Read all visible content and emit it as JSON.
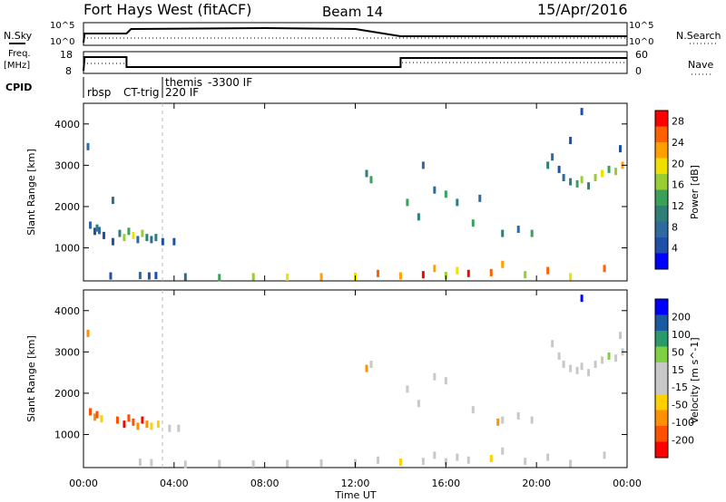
{
  "header": {
    "station": "Fort Hays West (fitACF)",
    "beam": "Beam 14",
    "date": "15/Apr/2016"
  },
  "summary": {
    "nsky_label": "N.Sky",
    "nsky_ticks": [
      "10^5",
      "10^0"
    ],
    "nsearch_label": "N.Search",
    "freq_label_1": "Freq.",
    "freq_label_2": "[MHz]",
    "freq_ticks": [
      "18",
      "8"
    ],
    "nave_ticks": [
      "60",
      "0"
    ],
    "nave_label": "Nave",
    "cpid_label": "CPID",
    "cpid_entries": [
      "rbsp",
      "CT-trig",
      "themis",
      "-3300 IF",
      "220 IF"
    ]
  },
  "colors": {
    "power_scale": [
      "#0000ff",
      "#1f4fa8",
      "#2e6aa0",
      "#2f7f78",
      "#3aa05a",
      "#9acd32",
      "#f0e000",
      "#ffa000",
      "#ff6000",
      "#ff0000"
    ],
    "velocity_scale": [
      "#ff0000",
      "#ff5000",
      "#ff9000",
      "#ffd000",
      "#c8c8c8",
      "#c8c8c8",
      "#7fd040",
      "#2a9a6a",
      "#1a5aa0",
      "#0000ff"
    ]
  },
  "chart_data": [
    {
      "type": "scatter",
      "panel": "power",
      "title": "",
      "xlabel": "Time UT",
      "ylabel": "Slant Range [km]",
      "xlim": [
        0,
        24
      ],
      "ylim": [
        200,
        4500
      ],
      "x_ticks": [
        "00:00",
        "04:00",
        "08:00",
        "12:00",
        "16:00",
        "20:00",
        "00:00"
      ],
      "y_ticks": [
        "1000",
        "2000",
        "3000",
        "4000"
      ],
      "colorbar_label": "Power [dB]",
      "colorbar_ticks": [
        "4",
        "8",
        "12",
        "16",
        "20",
        "24",
        "28"
      ],
      "colorbar_range": [
        0,
        30
      ],
      "points": [
        [
          0.2,
          3450,
          6
        ],
        [
          0.3,
          1550,
          8
        ],
        [
          0.5,
          1400,
          5
        ],
        [
          0.6,
          1480,
          9
        ],
        [
          0.7,
          1420,
          7
        ],
        [
          0.9,
          1300,
          3
        ],
        [
          1.3,
          1150,
          5
        ],
        [
          1.6,
          1350,
          10
        ],
        [
          1.8,
          1250,
          17
        ],
        [
          2.0,
          1400,
          13
        ],
        [
          2.2,
          1300,
          19
        ],
        [
          2.4,
          1200,
          8
        ],
        [
          2.6,
          1350,
          15
        ],
        [
          2.8,
          1250,
          11
        ],
        [
          3.0,
          1200,
          6
        ],
        [
          3.2,
          1250,
          9
        ],
        [
          3.5,
          1150,
          4
        ],
        [
          4.0,
          1150,
          5
        ],
        [
          1.3,
          2150,
          7
        ],
        [
          1.2,
          320,
          4
        ],
        [
          2.5,
          330,
          6
        ],
        [
          2.9,
          320,
          4
        ],
        [
          3.2,
          330,
          5
        ],
        [
          4.5,
          300,
          8
        ],
        [
          6.0,
          280,
          12
        ],
        [
          7.5,
          300,
          16
        ],
        [
          9.0,
          290,
          20
        ],
        [
          10.5,
          300,
          23
        ],
        [
          12.0,
          310,
          18
        ],
        [
          13.0,
          380,
          25
        ],
        [
          14.0,
          320,
          21
        ],
        [
          15.0,
          350,
          27
        ],
        [
          15.5,
          500,
          22
        ],
        [
          16.0,
          330,
          17
        ],
        [
          16.5,
          450,
          19
        ],
        [
          17.0,
          380,
          28
        ],
        [
          18.0,
          400,
          24
        ],
        [
          18.5,
          600,
          21
        ],
        [
          19.5,
          350,
          17
        ],
        [
          20.5,
          450,
          24
        ],
        [
          21.5,
          300,
          20
        ],
        [
          23.0,
          500,
          25
        ],
        [
          12.5,
          2800,
          9
        ],
        [
          12.7,
          2650,
          12
        ],
        [
          14.3,
          2100,
          14
        ],
        [
          14.8,
          1750,
          10
        ],
        [
          15.5,
          2400,
          7
        ],
        [
          16.0,
          2300,
          13
        ],
        [
          16.5,
          2100,
          9
        ],
        [
          17.2,
          1600,
          12
        ],
        [
          17.5,
          2200,
          6
        ],
        [
          18.5,
          1350,
          10
        ],
        [
          19.2,
          1450,
          8
        ],
        [
          19.8,
          1350,
          13
        ],
        [
          15.0,
          3000,
          6
        ],
        [
          21.0,
          2900,
          5
        ],
        [
          21.2,
          2700,
          7
        ],
        [
          21.5,
          2600,
          9
        ],
        [
          21.8,
          2550,
          12
        ],
        [
          22.0,
          2650,
          16
        ],
        [
          22.3,
          2500,
          10
        ],
        [
          22.6,
          2700,
          15
        ],
        [
          22.9,
          2800,
          19
        ],
        [
          23.2,
          2900,
          13
        ],
        [
          23.5,
          2850,
          17
        ],
        [
          23.8,
          3000,
          22
        ],
        [
          20.5,
          3000,
          9
        ],
        [
          20.7,
          3200,
          6
        ],
        [
          21.5,
          3600,
          5
        ],
        [
          22.0,
          4300,
          3
        ],
        [
          23.7,
          3400,
          4
        ]
      ]
    },
    {
      "type": "scatter",
      "panel": "velocity",
      "title": "",
      "xlabel": "Time UT",
      "ylabel": "Slant Range [km]",
      "xlim": [
        0,
        24
      ],
      "ylim": [
        200,
        4500
      ],
      "x_ticks": [
        "00:00",
        "04:00",
        "08:00",
        "12:00",
        "16:00",
        "20:00",
        "00:00"
      ],
      "y_ticks": [
        "1000",
        "2000",
        "3000",
        "4000"
      ],
      "colorbar_label": "Velocity [m s^-1]",
      "colorbar_ticks": [
        "200",
        "100",
        "50",
        "15",
        "-15",
        "-50",
        "-100",
        "-200"
      ],
      "colorbar_range": [
        -250,
        250
      ],
      "points": [
        [
          0.2,
          3450,
          -120
        ],
        [
          0.3,
          1550,
          -180
        ],
        [
          0.5,
          1420,
          -150
        ],
        [
          0.6,
          1480,
          -200
        ],
        [
          0.8,
          1380,
          -90
        ],
        [
          1.5,
          1350,
          -160
        ],
        [
          1.8,
          1250,
          -220
        ],
        [
          2.0,
          1400,
          -170
        ],
        [
          2.2,
          1300,
          -190
        ],
        [
          2.4,
          1200,
          -140
        ],
        [
          2.6,
          1350,
          -210
        ],
        [
          2.8,
          1250,
          -130
        ],
        [
          3.0,
          1200,
          -80
        ],
        [
          3.3,
          1250,
          -60
        ],
        [
          3.8,
          1150,
          -40
        ],
        [
          4.2,
          1150,
          -30
        ],
        [
          2.5,
          330,
          -30
        ],
        [
          3.0,
          320,
          -20
        ],
        [
          4.5,
          280,
          -25
        ],
        [
          6.0,
          300,
          -40
        ],
        [
          7.5,
          290,
          -30
        ],
        [
          9.0,
          300,
          -50
        ],
        [
          10.5,
          310,
          -35
        ],
        [
          12.0,
          320,
          -45
        ],
        [
          13.0,
          380,
          -30
        ],
        [
          14.0,
          330,
          -60
        ],
        [
          15.0,
          350,
          20
        ],
        [
          15.5,
          500,
          -40
        ],
        [
          16.0,
          340,
          40
        ],
        [
          16.5,
          450,
          -50
        ],
        [
          17.0,
          380,
          -35
        ],
        [
          18.0,
          420,
          -55
        ],
        [
          18.5,
          600,
          -25
        ],
        [
          19.5,
          350,
          -40
        ],
        [
          20.5,
          450,
          -45
        ],
        [
          21.5,
          300,
          -30
        ],
        [
          23.0,
          500,
          -50
        ],
        [
          12.5,
          2600,
          -120
        ],
        [
          12.7,
          2700,
          0
        ],
        [
          14.3,
          2100,
          0
        ],
        [
          14.8,
          1750,
          0
        ],
        [
          15.5,
          2400,
          0
        ],
        [
          16.0,
          2300,
          0
        ],
        [
          17.2,
          1600,
          0
        ],
        [
          18.3,
          1300,
          -110
        ],
        [
          18.5,
          1350,
          0
        ],
        [
          19.2,
          1450,
          0
        ],
        [
          19.8,
          1350,
          0
        ],
        [
          21.0,
          2900,
          0
        ],
        [
          21.2,
          2700,
          5
        ],
        [
          21.5,
          2600,
          -5
        ],
        [
          21.8,
          2550,
          0
        ],
        [
          22.0,
          2650,
          5
        ],
        [
          22.3,
          2500,
          0
        ],
        [
          22.6,
          2700,
          -8
        ],
        [
          22.9,
          2800,
          0
        ],
        [
          23.2,
          2900,
          60
        ],
        [
          23.5,
          2850,
          0
        ],
        [
          23.8,
          3000,
          30
        ],
        [
          20.7,
          3200,
          0
        ],
        [
          22.0,
          4300,
          220
        ],
        [
          23.7,
          3400,
          0
        ]
      ]
    }
  ]
}
